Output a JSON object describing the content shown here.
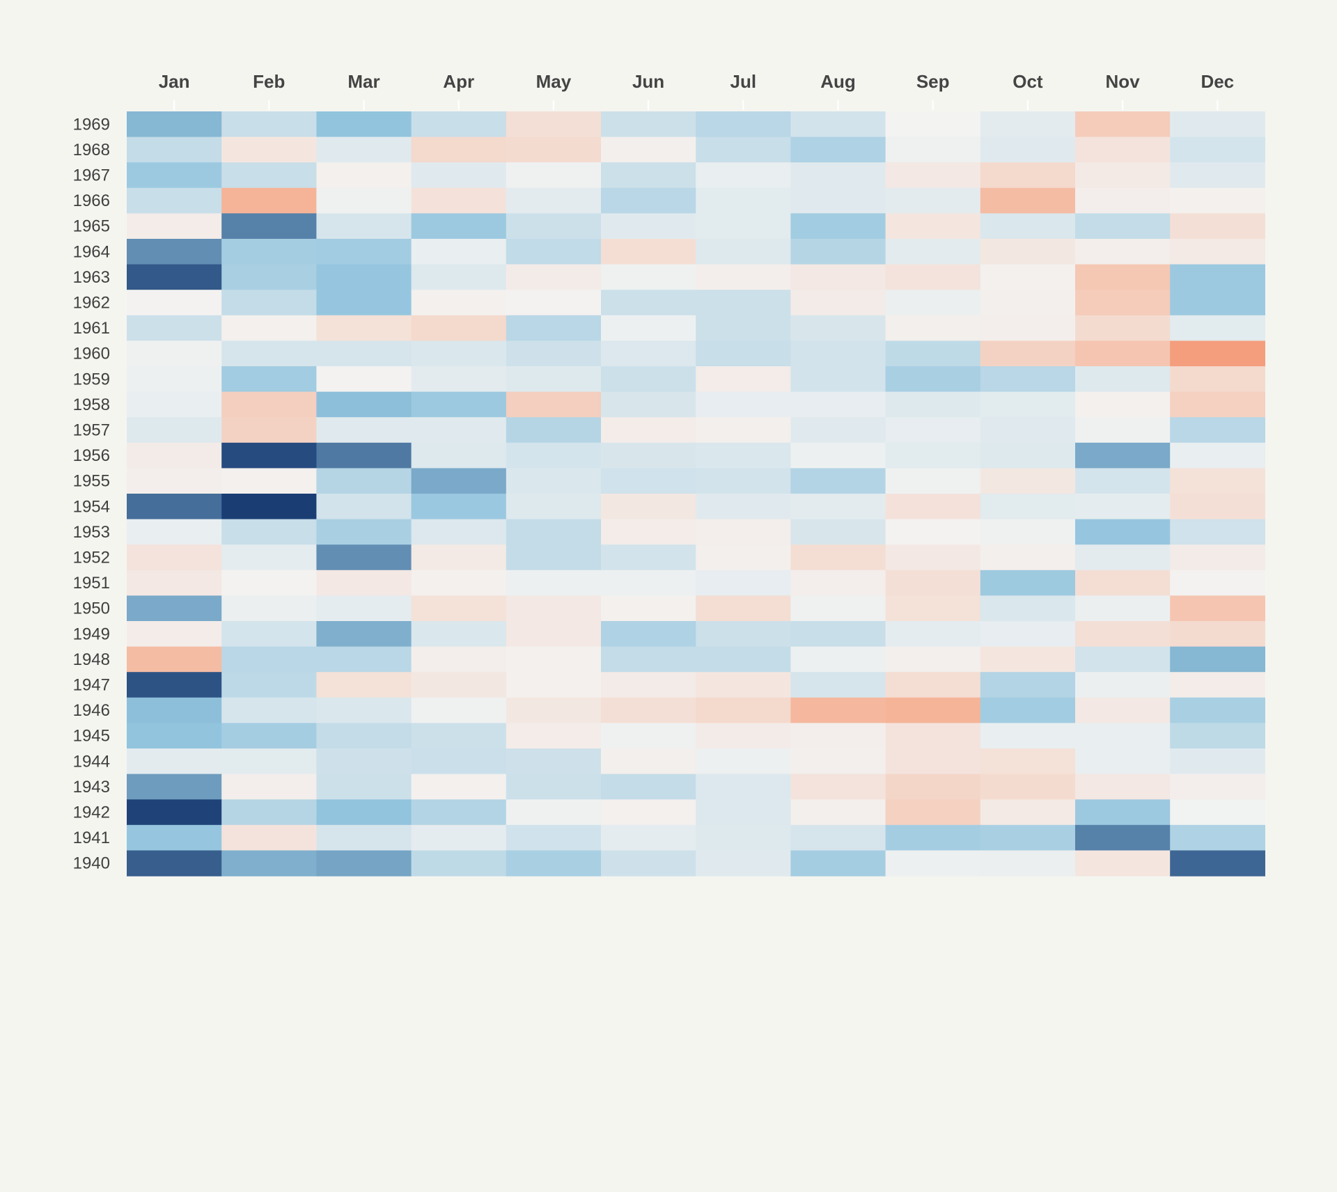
{
  "chart_data": {
    "type": "heatmap",
    "title": "",
    "xlabel": "",
    "ylabel": "",
    "x_categories": [
      "Jan",
      "Feb",
      "Mar",
      "Apr",
      "May",
      "Jun",
      "Jul",
      "Aug",
      "Sep",
      "Oct",
      "Nov",
      "Dec"
    ],
    "y_categories": [
      "1969",
      "1968",
      "1967",
      "1966",
      "1965",
      "1964",
      "1963",
      "1962",
      "1961",
      "1960",
      "1959",
      "1958",
      "1957",
      "1956",
      "1955",
      "1954",
      "1953",
      "1952",
      "1951",
      "1950",
      "1949",
      "1948",
      "1947",
      "1946",
      "1945",
      "1944",
      "1943",
      "1942",
      "1941",
      "1940"
    ],
    "value_range": [
      -1,
      1
    ],
    "color_scale": {
      "negative": "#1a3e74",
      "neutral": "#f3f3f2",
      "positive": "#e3705a",
      "note_sign": "negative values blue, positive values red"
    },
    "x_axis_position": "top",
    "legend": "none",
    "grid": false,
    "values": [
      [
        -0.55,
        -0.22,
        -0.5,
        -0.22,
        0.15,
        -0.2,
        -0.3,
        -0.17,
        0,
        -0.08,
        0.3,
        -0.1
      ],
      [
        -0.25,
        0.1,
        -0.1,
        0.2,
        0.18,
        0.03,
        -0.22,
        -0.35,
        -0.02,
        -0.1,
        0.12,
        -0.16
      ],
      [
        -0.45,
        -0.22,
        0.02,
        -0.1,
        -0.02,
        -0.2,
        -0.05,
        -0.1,
        0.08,
        0.2,
        0.07,
        -0.1
      ],
      [
        -0.22,
        0.48,
        -0.02,
        0.13,
        -0.08,
        -0.3,
        -0.09,
        -0.1,
        -0.08,
        0.42,
        0.04,
        0.02
      ],
      [
        0.05,
        -0.75,
        -0.15,
        -0.45,
        -0.2,
        -0.1,
        -0.09,
        -0.42,
        0.1,
        -0.13,
        -0.25,
        0.15
      ],
      [
        -0.7,
        -0.4,
        -0.42,
        -0.05,
        -0.26,
        0.16,
        -0.11,
        -0.32,
        -0.08,
        0.09,
        0.04,
        0.07
      ],
      [
        -0.9,
        -0.38,
        -0.48,
        -0.11,
        0.06,
        -0.02,
        0.04,
        0.08,
        0.12,
        0.02,
        0.33,
        -0.45
      ],
      [
        0.01,
        -0.25,
        -0.48,
        0.02,
        0.01,
        -0.2,
        -0.2,
        0.06,
        -0.04,
        0.03,
        0.3,
        -0.45
      ],
      [
        -0.2,
        0.02,
        0.14,
        0.2,
        -0.3,
        -0.03,
        -0.2,
        -0.14,
        0.03,
        0.04,
        0.18,
        -0.09
      ],
      [
        -0.02,
        -0.15,
        -0.15,
        -0.13,
        -0.19,
        -0.12,
        -0.22,
        -0.17,
        -0.27,
        0.25,
        0.35,
        0.65
      ],
      [
        -0.03,
        -0.42,
        0.01,
        -0.08,
        -0.11,
        -0.2,
        0.05,
        -0.17,
        -0.38,
        -0.3,
        -0.11,
        0.2
      ],
      [
        -0.05,
        0.27,
        -0.52,
        -0.45,
        0.28,
        -0.14,
        -0.06,
        -0.06,
        -0.11,
        -0.09,
        0.02,
        0.26
      ],
      [
        -0.11,
        0.25,
        -0.1,
        -0.1,
        -0.32,
        0.05,
        0.03,
        -0.1,
        -0.06,
        -0.1,
        -0.02,
        -0.3
      ],
      [
        0.06,
        -0.95,
        -0.78,
        -0.11,
        -0.16,
        -0.14,
        -0.13,
        -0.03,
        -0.09,
        -0.11,
        -0.6,
        -0.05
      ],
      [
        0.04,
        0.02,
        -0.32,
        -0.6,
        -0.13,
        -0.18,
        -0.17,
        -0.33,
        -0.02,
        0.09,
        -0.16,
        0.14
      ],
      [
        -0.82,
        -1,
        -0.17,
        -0.46,
        -0.11,
        0.09,
        -0.1,
        -0.08,
        0.13,
        -0.09,
        -0.07,
        0.15
      ],
      [
        -0.05,
        -0.22,
        -0.38,
        -0.12,
        -0.25,
        0.05,
        0.04,
        -0.14,
        0.01,
        -0.02,
        -0.48,
        -0.18
      ],
      [
        0.12,
        -0.07,
        -0.7,
        0.07,
        -0.25,
        -0.17,
        0.03,
        0.16,
        0.08,
        0.03,
        -0.08,
        0.06
      ],
      [
        0.08,
        0.01,
        0.08,
        0.02,
        -0.03,
        -0.03,
        -0.06,
        0.04,
        0.15,
        -0.44,
        0.16,
        0.01
      ],
      [
        -0.6,
        -0.04,
        -0.07,
        0.14,
        0.08,
        0.02,
        0.17,
        -0.02,
        0.14,
        -0.13,
        -0.04,
        0.35
      ],
      [
        0.05,
        -0.16,
        -0.58,
        -0.13,
        0.08,
        -0.35,
        -0.2,
        -0.22,
        -0.07,
        -0.06,
        0.15,
        0.18
      ],
      [
        0.42,
        -0.3,
        -0.3,
        0.04,
        0.02,
        -0.25,
        -0.25,
        -0.03,
        0.03,
        0.1,
        -0.17,
        -0.55
      ],
      [
        -0.92,
        -0.28,
        0.14,
        0.09,
        0.02,
        0.06,
        0.1,
        -0.15,
        0.17,
        -0.33,
        -0.04,
        0.05
      ],
      [
        -0.52,
        -0.15,
        -0.13,
        -0.02,
        0.09,
        0.15,
        0.2,
        0.45,
        0.48,
        -0.42,
        0.08,
        -0.38
      ],
      [
        -0.5,
        -0.4,
        -0.24,
        -0.2,
        0.05,
        -0.02,
        0.06,
        0.04,
        0.12,
        -0.05,
        -0.05,
        -0.27
      ],
      [
        -0.08,
        -0.09,
        -0.19,
        -0.21,
        -0.19,
        0.03,
        -0.03,
        0.03,
        0.12,
        0.14,
        -0.05,
        -0.1
      ],
      [
        -0.65,
        0.04,
        -0.2,
        0.02,
        -0.2,
        -0.25,
        -0.12,
        0.12,
        0.22,
        0.18,
        0.08,
        0.04
      ],
      [
        -0.98,
        -0.32,
        -0.5,
        -0.33,
        -0.02,
        0.02,
        -0.12,
        0.03,
        0.26,
        0.07,
        -0.45,
        -0.01
      ],
      [
        -0.48,
        0.12,
        -0.15,
        -0.07,
        -0.18,
        -0.07,
        -0.11,
        -0.15,
        -0.4,
        -0.38,
        -0.75,
        -0.35
      ],
      [
        -0.88,
        -0.58,
        -0.62,
        -0.27,
        -0.38,
        -0.19,
        -0.1,
        -0.4,
        -0.03,
        -0.04,
        0.1,
        -0.85
      ]
    ]
  }
}
